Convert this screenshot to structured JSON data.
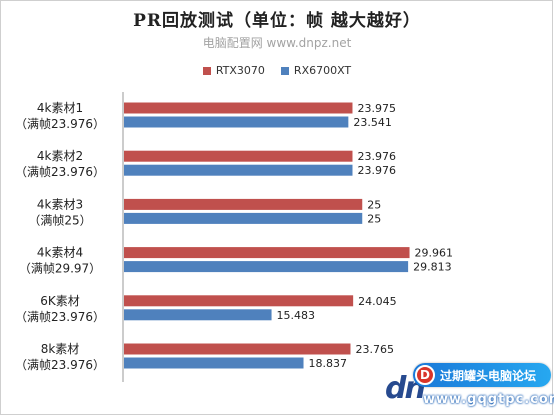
{
  "chart_data": {
    "type": "bar",
    "orientation": "horizontal",
    "title": "PR回放测试（单位：帧 越大越好）",
    "subtitle": "电脑配置网 www.dnpz.net",
    "categories": [
      {
        "line1": "4k素材1",
        "line2": "（满帧23.976）"
      },
      {
        "line1": "4k素材2",
        "line2": "（满帧23.976）"
      },
      {
        "line1": "4k素材3",
        "line2": "（满帧25）"
      },
      {
        "line1": "4k素材4",
        "line2": "（满帧29.97）"
      },
      {
        "line1": "6K素材",
        "line2": "（满帧23.976）"
      },
      {
        "line1": "8k素材",
        "line2": "（满帧23.976）"
      }
    ],
    "series": [
      {
        "name": "RTX3070",
        "color": "#c0504d",
        "values": [
          23.975,
          23.976,
          25,
          29.961,
          24.045,
          23.765
        ],
        "labels": [
          "23.975",
          "23.976",
          "25",
          "29.961",
          "24.045",
          "23.765"
        ]
      },
      {
        "name": "RX6700XT",
        "color": "#4f81bd",
        "values": [
          23.541,
          23.976,
          25,
          29.813,
          15.483,
          18.837
        ],
        "labels": [
          "23.541",
          "23.976",
          "25",
          "29.813",
          "15.483",
          "18.837"
        ]
      }
    ],
    "legend_position": "top",
    "xlim": [
      0,
      35
    ],
    "grid": false
  },
  "watermark": {
    "logo": "dn",
    "badge_icon": "D",
    "badge_text": "过期罐头电脑论坛",
    "url": "www.gqgtpc.com"
  }
}
